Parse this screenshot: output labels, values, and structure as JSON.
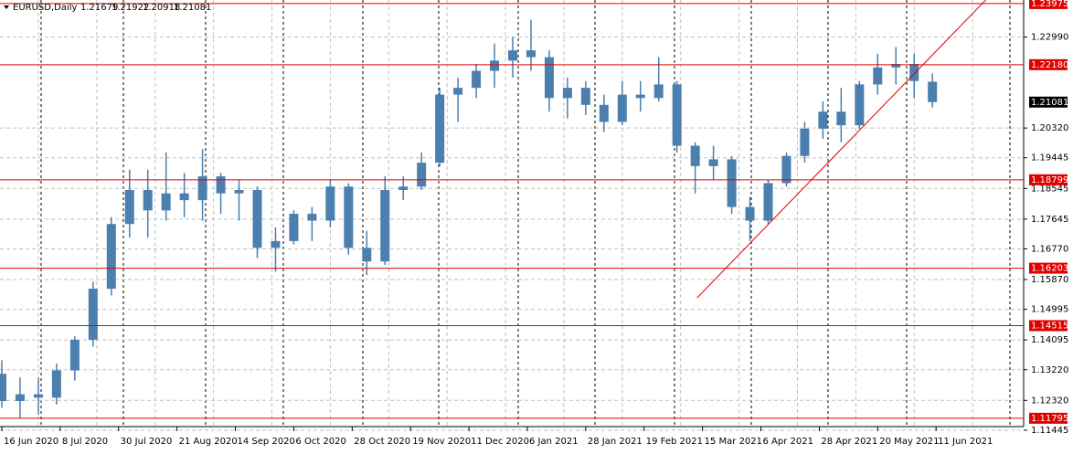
{
  "chart_data": {
    "type": "candlestick",
    "title": "EURUSD,Daily",
    "x": [
      0,
      5,
      10,
      15,
      20,
      25,
      30,
      35,
      40,
      45,
      50,
      55,
      60,
      65,
      70,
      75,
      80,
      85,
      90,
      95,
      100,
      105,
      110,
      115,
      120,
      125,
      130,
      135,
      140,
      145,
      150,
      155,
      160,
      165,
      170,
      175,
      180,
      185,
      190,
      195,
      200,
      205,
      210,
      215,
      220,
      225,
      230,
      235,
      240,
      245,
      250,
      255
    ],
    "open": [
      1.131,
      1.123,
      1.125,
      1.124,
      1.132,
      1.141,
      1.156,
      1.175,
      1.185,
      1.179,
      1.184,
      1.182,
      1.189,
      1.184,
      1.185,
      1.168,
      1.17,
      1.178,
      1.176,
      1.186,
      1.168,
      1.164,
      1.185,
      1.186,
      1.193,
      1.213,
      1.215,
      1.22,
      1.223,
      1.226,
      1.224,
      1.212,
      1.215,
      1.21,
      1.205,
      1.213,
      1.212,
      1.216,
      1.198,
      1.192,
      1.194,
      1.18,
      1.176,
      1.187,
      1.195,
      1.203,
      1.208,
      1.204,
      1.216,
      1.221,
      1.222,
      1.21679
    ],
    "high": [
      1.135,
      1.13,
      1.13,
      1.134,
      1.142,
      1.158,
      1.177,
      1.191,
      1.191,
      1.196,
      1.19,
      1.197,
      1.19,
      1.188,
      1.186,
      1.174,
      1.179,
      1.18,
      1.188,
      1.187,
      1.173,
      1.189,
      1.189,
      1.196,
      1.215,
      1.218,
      1.222,
      1.228,
      1.23,
      1.235,
      1.226,
      1.218,
      1.217,
      1.213,
      1.217,
      1.217,
      1.224,
      1.217,
      1.199,
      1.198,
      1.195,
      1.183,
      1.188,
      1.196,
      1.205,
      1.211,
      1.215,
      1.217,
      1.225,
      1.227,
      1.225,
      1.21922
    ],
    "low": [
      1.121,
      1.118,
      1.119,
      1.122,
      1.129,
      1.139,
      1.154,
      1.171,
      1.171,
      1.176,
      1.177,
      1.176,
      1.178,
      1.176,
      1.165,
      1.161,
      1.169,
      1.17,
      1.174,
      1.166,
      1.16,
      1.163,
      1.182,
      1.185,
      1.192,
      1.205,
      1.212,
      1.215,
      1.218,
      1.22,
      1.208,
      1.206,
      1.207,
      1.202,
      1.204,
      1.208,
      1.211,
      1.196,
      1.184,
      1.188,
      1.178,
      1.17,
      1.175,
      1.186,
      1.193,
      1.2,
      1.199,
      1.203,
      1.213,
      1.216,
      1.212,
      1.20918
    ],
    "close": [
      1.123,
      1.125,
      1.124,
      1.132,
      1.141,
      1.156,
      1.175,
      1.185,
      1.179,
      1.184,
      1.182,
      1.189,
      1.184,
      1.185,
      1.168,
      1.17,
      1.178,
      1.176,
      1.186,
      1.168,
      1.164,
      1.185,
      1.186,
      1.193,
      1.213,
      1.215,
      1.22,
      1.223,
      1.226,
      1.224,
      1.212,
      1.215,
      1.21,
      1.205,
      1.213,
      1.212,
      1.216,
      1.198,
      1.192,
      1.194,
      1.18,
      1.176,
      1.187,
      1.195,
      1.203,
      1.208,
      1.204,
      1.216,
      1.221,
      1.222,
      1.217,
      1.21081
    ],
    "color": "#4a7fae",
    "xlim": [
      -0.5,
      280
    ],
    "xticks": [
      {
        "value": 0,
        "label": "16 Jun 2020"
      },
      {
        "value": 16,
        "label": "8 Jul 2020"
      },
      {
        "value": 32,
        "label": "30 Jul 2020"
      },
      {
        "value": 48,
        "label": "21 Aug 2020"
      },
      {
        "value": 64,
        "label": "14 Sep 2020"
      },
      {
        "value": 80,
        "label": "6 Oct 2020"
      },
      {
        "value": 96,
        "label": "28 Oct 2020"
      },
      {
        "value": 112,
        "label": "19 Nov 2020"
      },
      {
        "value": 128,
        "label": "11 Dec 2020"
      },
      {
        "value": 144,
        "label": "6 Jan 2021"
      },
      {
        "value": 160,
        "label": "28 Jan 2021"
      },
      {
        "value": 176,
        "label": "19 Feb 2021"
      },
      {
        "value": 192,
        "label": "15 Mar 2021"
      },
      {
        "value": 208,
        "label": "6 Apr 2021"
      },
      {
        "value": 224,
        "label": "28 Apr 2021"
      },
      {
        "value": 240,
        "label": "20 May 2021"
      },
      {
        "value": 256,
        "label": "11 Jun 2021"
      }
    ],
    "ylim": [
      1.1155,
      1.2408
    ],
    "yticks": [
      1.11445,
      {
        "value": 1.1232,
        "label": "1.12320"
      },
      {
        "value": 1.1322,
        "label": "1.13220"
      },
      1.14095,
      1.14995,
      {
        "value": 1.1587,
        "label": "1.15870"
      },
      {
        "value": 1.1677,
        "label": "1.16770"
      },
      1.17645,
      1.18545,
      1.19445,
      {
        "value": 1.2032,
        "label": "1.20320"
      },
      {
        "value": 1.2299,
        "label": "1.22990"
      }
    ],
    "grid": true,
    "levels": [
      1.23975,
      {
        "value": 1.2218,
        "label": "1.22180"
      },
      1.18799,
      1.16203,
      1.14515,
      1.11795
    ],
    "level_color": "#e00000",
    "trendline": {
      "x": [
        190.5,
        269.6
      ],
      "y": [
        1.1533,
        1.2408
      ]
    }
  }
}
